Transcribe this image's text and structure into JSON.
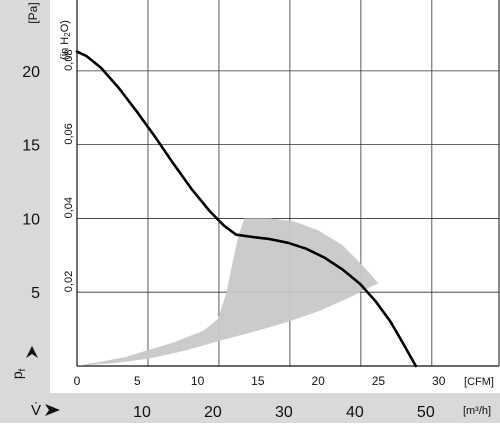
{
  "chart_data": {
    "type": "line",
    "y_axis": {
      "unit": "[Pa]",
      "range": [
        0,
        24.8
      ],
      "ticks": [
        {
          "value": 5,
          "label": "5"
        },
        {
          "value": 10,
          "label": "10"
        },
        {
          "value": 15,
          "label": "15"
        },
        {
          "value": 20,
          "label": "20"
        }
      ],
      "symbol": "pf"
    },
    "y2_axis": {
      "unit": "(in H2O)",
      "ticks": [
        {
          "pa": 5,
          "label": "0,02"
        },
        {
          "pa": 10,
          "label": "0,04"
        },
        {
          "pa": 15,
          "label": "0,06"
        },
        {
          "pa": 20,
          "label": "0,08"
        }
      ]
    },
    "x_axis": {
      "unit": "[CFM]",
      "range": [
        0,
        35
      ],
      "ticks": [
        {
          "value": 0,
          "label": "0"
        },
        {
          "value": 5,
          "label": "5"
        },
        {
          "value": 10,
          "label": "10"
        },
        {
          "value": 15,
          "label": "15"
        },
        {
          "value": 20,
          "label": "20"
        },
        {
          "value": 25,
          "label": "25"
        },
        {
          "value": 30,
          "label": "30"
        }
      ]
    },
    "x2_axis": {
      "unit": "[m³/h]",
      "symbol": "V̇",
      "ticks": [
        {
          "m3h": 10,
          "label": "10"
        },
        {
          "m3h": 20,
          "label": "20"
        },
        {
          "m3h": 30,
          "label": "30"
        },
        {
          "m3h": 40,
          "label": "40"
        },
        {
          "m3h": 50,
          "label": "50"
        }
      ]
    },
    "grid": true,
    "curve": [
      [
        0,
        21.3
      ],
      [
        0.8,
        21.0
      ],
      [
        2,
        20.2
      ],
      [
        3.5,
        18.8
      ],
      [
        5,
        17.2
      ],
      [
        6.5,
        15.5
      ],
      [
        8,
        13.7
      ],
      [
        9.5,
        12.0
      ],
      [
        11,
        10.5
      ],
      [
        12.2,
        9.5
      ],
      [
        13.2,
        8.9
      ],
      [
        14.5,
        8.75
      ],
      [
        16,
        8.6
      ],
      [
        17.5,
        8.35
      ],
      [
        19,
        7.95
      ],
      [
        20.5,
        7.35
      ],
      [
        22,
        6.55
      ],
      [
        23.5,
        5.55
      ],
      [
        24.8,
        4.35
      ],
      [
        26,
        3.0
      ],
      [
        27,
        1.6
      ],
      [
        28.1,
        0.0
      ]
    ],
    "operating_region": {
      "outer": [
        [
          0,
          0.0
        ],
        [
          4,
          0.6
        ],
        [
          8,
          1.6
        ],
        [
          10.5,
          2.4
        ],
        [
          11.7,
          3.2
        ],
        [
          12.4,
          5.0
        ],
        [
          12.9,
          7.0
        ],
        [
          13.4,
          8.9
        ],
        [
          13.9,
          10.0
        ],
        [
          16,
          10.0
        ],
        [
          18,
          9.8
        ],
        [
          20,
          9.2
        ],
        [
          22,
          8.2
        ],
        [
          23.7,
          6.8
        ],
        [
          25,
          5.6
        ]
      ],
      "inner": [
        [
          24.2,
          5.3
        ],
        [
          22.5,
          4.6
        ],
        [
          20,
          3.7
        ],
        [
          17.5,
          3.0
        ],
        [
          15,
          2.4
        ],
        [
          12,
          1.75
        ],
        [
          9,
          1.05
        ],
        [
          6,
          0.5
        ],
        [
          3,
          0.18
        ],
        [
          0,
          0.0
        ]
      ]
    }
  }
}
